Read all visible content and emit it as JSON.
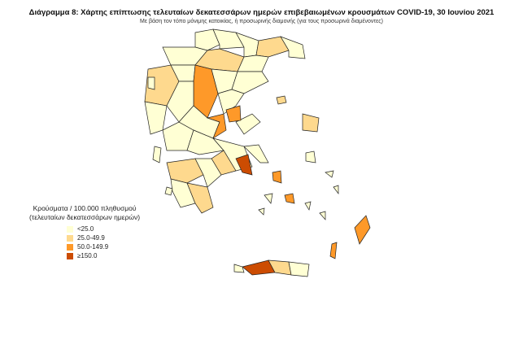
{
  "title": "Διάγραμμα 8: Χάρτης επίπτωσης τελευταίων δεκατεσσάρων ημερών επιβεβαιωμένων κρουσμάτων COVID-19, 30 Ιουνίου 2021",
  "subtitle": "Με βάση τον τόπο μόνιμης κατοικίας, ή προσωρινής διαμονής (για τους προσωρινά διαμένοντες)",
  "legend": {
    "title_line1": "Κρούσματα / 100.000 πληθυσμού",
    "title_line2": "(τελευταίων δεκατεσσάρων ημερών)",
    "items": [
      {
        "label": "<25.0",
        "color": "#ffffd4"
      },
      {
        "label": "25.0-49.9",
        "color": "#fed98e"
      },
      {
        "label": "50.0-149.9",
        "color": "#fe9929"
      },
      {
        "label": "≥150.0",
        "color": "#cc4c02"
      }
    ]
  }
}
